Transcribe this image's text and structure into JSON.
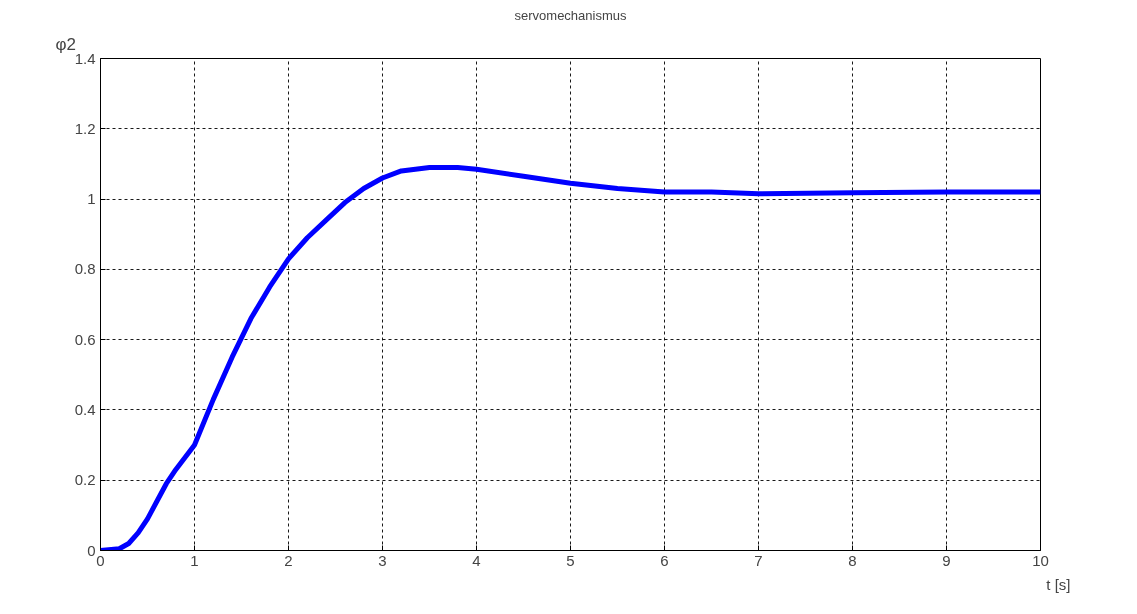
{
  "chart_data": {
    "type": "line",
    "title": "servomechanismus",
    "xlabel": "t [s]",
    "ylabel": "φ2",
    "x": [
      0,
      0.2,
      0.3,
      0.4,
      0.5,
      0.6,
      0.7,
      0.8,
      1,
      1.2,
      1.4,
      1.6,
      1.8,
      2,
      2.2,
      2.4,
      2.6,
      2.8,
      3,
      3.2,
      3.5,
      3.8,
      4,
      4.5,
      5,
      5.5,
      6,
      6.5,
      7,
      8,
      9,
      10
    ],
    "series": [
      {
        "color": "#0000ff",
        "values": [
          0,
          0.005,
          0.02,
          0.05,
          0.09,
          0.14,
          0.19,
          0.23,
          0.3,
          0.43,
          0.55,
          0.66,
          0.75,
          0.83,
          0.89,
          0.94,
          0.99,
          1.03,
          1.06,
          1.08,
          1.09,
          1.09,
          1.085,
          1.065,
          1.045,
          1.03,
          1.02,
          1.02,
          1.015,
          1.018,
          1.02,
          1.02
        ]
      }
    ],
    "xlim": [
      0,
      10
    ],
    "ylim": [
      0,
      1.4
    ],
    "xticks": [
      0,
      1,
      2,
      3,
      4,
      5,
      6,
      7,
      8,
      9,
      10
    ],
    "yticks": [
      0,
      0.2,
      0.4,
      0.6,
      0.8,
      1,
      1.2,
      1.4
    ],
    "grid": true,
    "line_style": "solid",
    "marker": "none"
  }
}
